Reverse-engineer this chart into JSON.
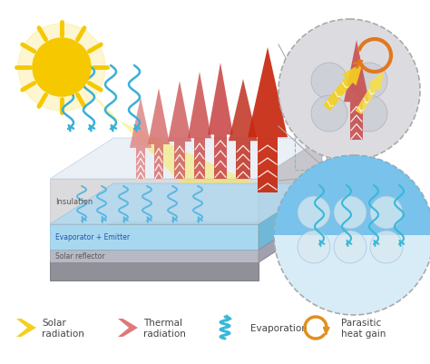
{
  "background_color": "#ffffff",
  "layer_labels": [
    "Insulation",
    "Evaporator + Emitter",
    "Solar reflector"
  ],
  "sun_color": "#f5c800",
  "sun_glow_color": "#fde87a",
  "box_insulation_color_front": "#d0d0d4",
  "box_insulation_color_top": "#e0e4e8",
  "box_evap_color": "#a8d8f0",
  "box_evap_top": "#c8e8f8",
  "box_sr_color": "#b8b8c4",
  "box_base_color": "#909098",
  "box_right_ins": "#c0c0c8",
  "box_right_evap": "#88c8e8",
  "box_right_sr": "#a0a0b0",
  "thermal_colors": [
    "#e08080",
    "#d87070",
    "#d06060",
    "#c85050",
    "#c84840",
    "#c04030",
    "#c83820"
  ],
  "thermal_alpha": 0.82,
  "solar_beam_color": "#f8e040",
  "solar_arrow_color": "#f0b030",
  "evap_color": "#3ab0d8",
  "evap_inside_color": "#5ab8e0",
  "zoom1_bg": "#dcdce0",
  "zoom1_circle_color": "#c8ccd0",
  "zoom2_bg": "#d0e8f8",
  "zoom2_water_color": "#60b8e8",
  "zoom2_circle_color": "#c8dce8",
  "dashed_color": "#aaaaaa",
  "legend_solar_color": "#f5d020",
  "legend_thermal_color": "#e07878",
  "legend_evap_color": "#3ab8d8",
  "legend_parasitic_color": "#e09020",
  "text_color": "#444444"
}
